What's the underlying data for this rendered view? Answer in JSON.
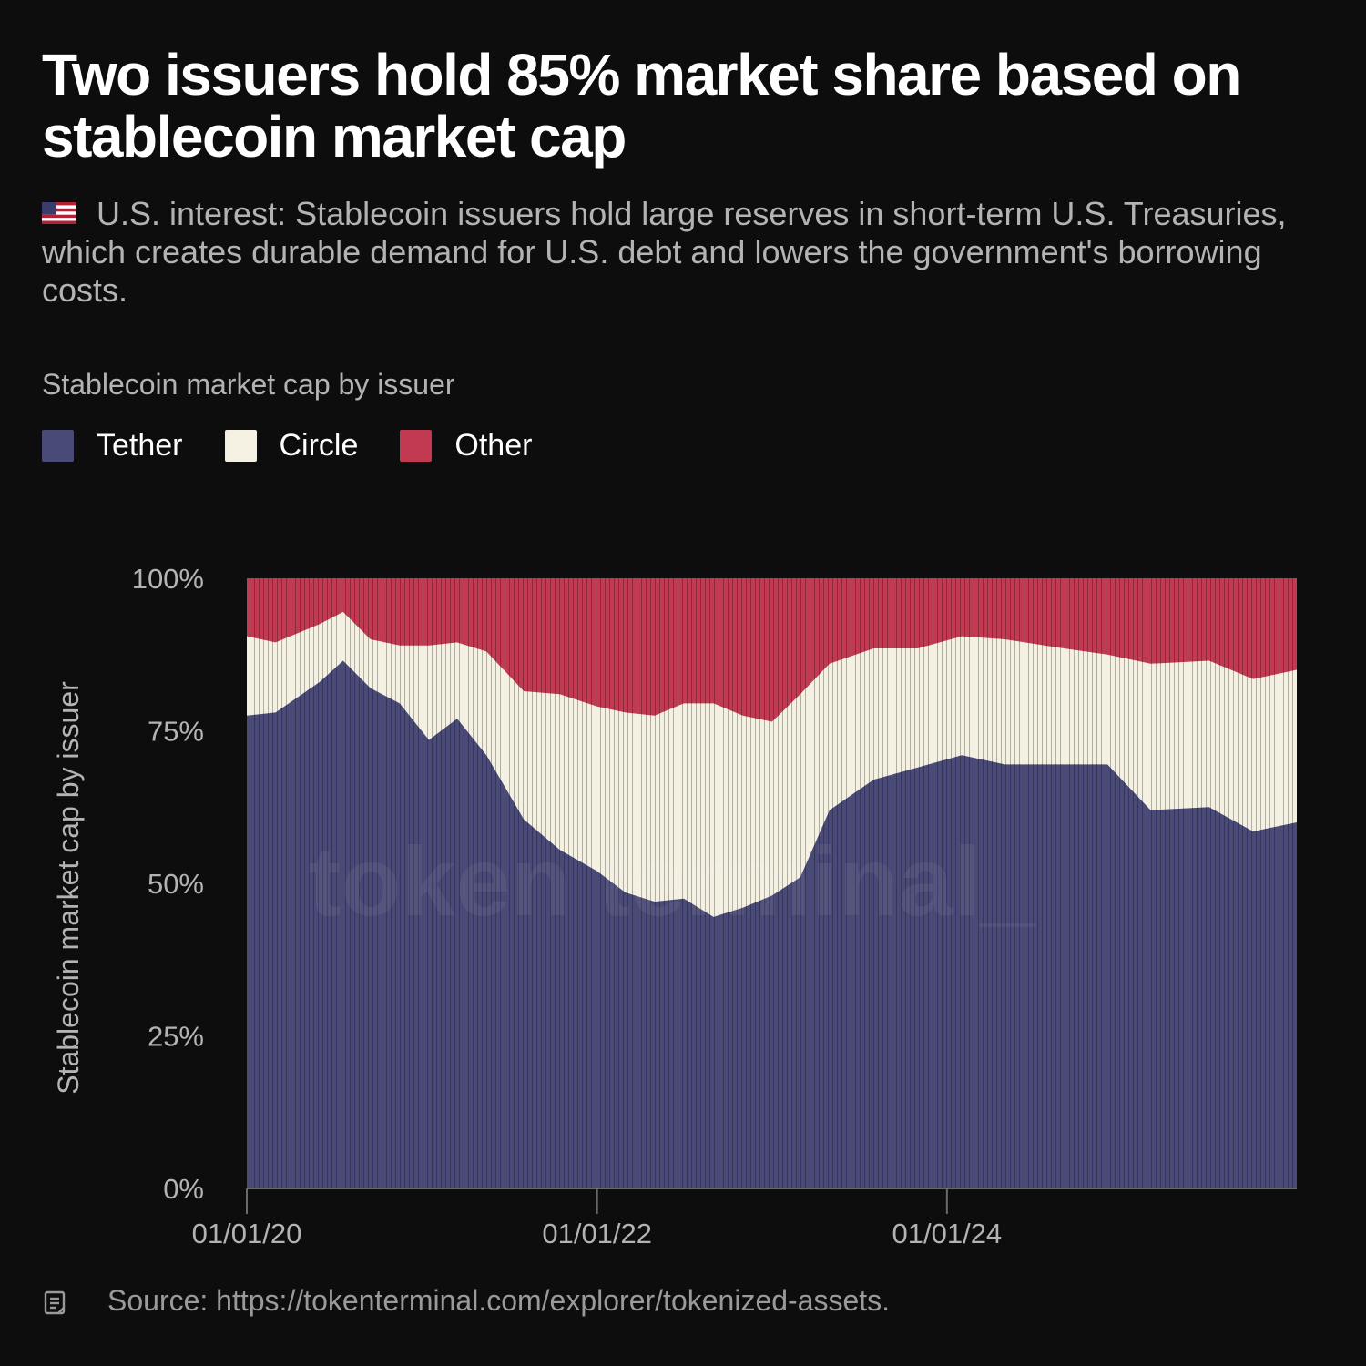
{
  "header": {
    "title": "Two issuers hold 85% market share based on stablecoin market cap",
    "subtitle": "U.S. interest: Stablecoin issuers hold large reserves in short-term U.S. Treasuries, which creates durable demand for U.S. debt and lowers the government's borrowing costs.",
    "flag_icon": "us-flag-icon"
  },
  "chart_heading": "Stablecoin market cap by issuer",
  "legend": [
    {
      "label": "Tether",
      "color": "#4a4a78"
    },
    {
      "label": "Circle",
      "color": "#f4f0e2"
    },
    {
      "label": "Other",
      "color": "#c23a52"
    }
  ],
  "watermark": "token terminal_",
  "source": {
    "icon": "document-icon",
    "text": "Source: https://tokenterminal.com/explorer/tokenized-assets."
  },
  "chart_data": {
    "type": "area",
    "stacked": true,
    "normalized": true,
    "title": "Stablecoin market cap by issuer",
    "xlabel": "",
    "ylabel": "Stablecoin market cap by issuer",
    "ylim": [
      0,
      100
    ],
    "y_ticks": [
      "0%",
      "25%",
      "50%",
      "75%",
      "100%"
    ],
    "x_range": [
      "2020-01-01",
      "2025-12-31"
    ],
    "x_ticks": [
      {
        "date": "2020-01-01",
        "label": "01/01/20"
      },
      {
        "date": "2022-01-01",
        "label": "01/01/22"
      },
      {
        "date": "2024-01-01",
        "label": "01/01/24"
      }
    ],
    "grid": false,
    "legend_position": "top-left",
    "keypoints": [
      {
        "date": "2020-01-01",
        "tether": 77.5,
        "circle": 13.0
      },
      {
        "date": "2020-03-01",
        "tether": 78.0,
        "circle": 11.5
      },
      {
        "date": "2020-06-01",
        "tether": 83.0,
        "circle": 9.5
      },
      {
        "date": "2020-07-20",
        "tether": 86.5,
        "circle": 8.0
      },
      {
        "date": "2020-09-15",
        "tether": 82.0,
        "circle": 8.0
      },
      {
        "date": "2020-11-15",
        "tether": 79.5,
        "circle": 9.5
      },
      {
        "date": "2021-01-15",
        "tether": 73.5,
        "circle": 15.5
      },
      {
        "date": "2021-03-15",
        "tether": 77.0,
        "circle": 12.5
      },
      {
        "date": "2021-05-15",
        "tether": 71.0,
        "circle": 17.0
      },
      {
        "date": "2021-08-01",
        "tether": 60.5,
        "circle": 21.0
      },
      {
        "date": "2021-10-15",
        "tether": 55.5,
        "circle": 25.5
      },
      {
        "date": "2022-01-01",
        "tether": 52.0,
        "circle": 27.0
      },
      {
        "date": "2022-03-01",
        "tether": 48.5,
        "circle": 29.5
      },
      {
        "date": "2022-05-01",
        "tether": 47.0,
        "circle": 30.5
      },
      {
        "date": "2022-07-01",
        "tether": 47.5,
        "circle": 32.0
      },
      {
        "date": "2022-09-01",
        "tether": 44.5,
        "circle": 35.0
      },
      {
        "date": "2022-11-01",
        "tether": 46.0,
        "circle": 31.5
      },
      {
        "date": "2023-01-01",
        "tether": 48.0,
        "circle": 28.5
      },
      {
        "date": "2023-03-01",
        "tether": 51.0,
        "circle": 30.0
      },
      {
        "date": "2023-05-01",
        "tether": 62.0,
        "circle": 24.0
      },
      {
        "date": "2023-08-01",
        "tether": 67.0,
        "circle": 21.5
      },
      {
        "date": "2023-11-01",
        "tether": 69.0,
        "circle": 19.5
      },
      {
        "date": "2024-02-01",
        "tether": 71.0,
        "circle": 19.5
      },
      {
        "date": "2024-05-01",
        "tether": 69.5,
        "circle": 20.5
      },
      {
        "date": "2024-09-01",
        "tether": 69.5,
        "circle": 19.0
      },
      {
        "date": "2024-12-01",
        "tether": 69.5,
        "circle": 18.0
      },
      {
        "date": "2025-03-01",
        "tether": 62.0,
        "circle": 24.0
      },
      {
        "date": "2025-07-01",
        "tether": 62.5,
        "circle": 24.0
      },
      {
        "date": "2025-10-01",
        "tether": 58.5,
        "circle": 25.0
      },
      {
        "date": "2025-12-31",
        "tether": 60.0,
        "circle": 25.0
      }
    ]
  }
}
